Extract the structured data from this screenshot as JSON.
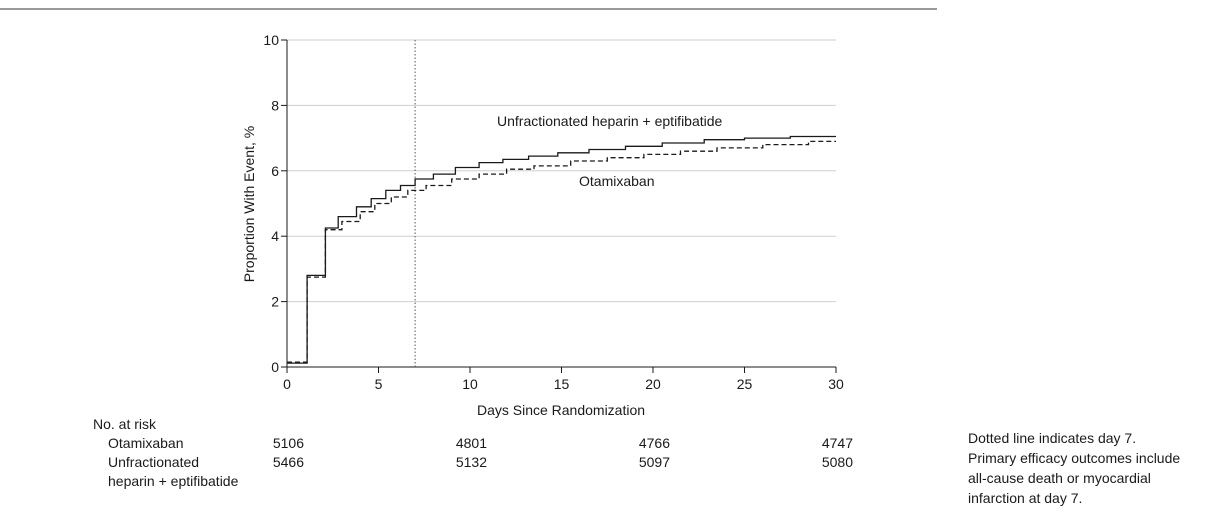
{
  "chart_data": {
    "type": "line",
    "xlabel": "Days Since Randomization",
    "ylabel": "Proportion With Event, %",
    "xlim": [
      0,
      30
    ],
    "ylim": [
      0,
      10
    ],
    "x_ticks": [
      "0",
      "5",
      "10",
      "15",
      "20",
      "25",
      "30"
    ],
    "y_ticks": [
      "0",
      "2",
      "4",
      "6",
      "8",
      "10"
    ],
    "grid": "horizontal",
    "reference_line": {
      "x": 7,
      "style": "dotted"
    },
    "series": [
      {
        "name": "Unfractionated heparin + eptifibatide",
        "line_style": "solid",
        "color": "#1a1a1a",
        "x": [
          0,
          1.1,
          1.1,
          2.1,
          2.1,
          2.8,
          2.8,
          3.8,
          3.8,
          4.6,
          4.6,
          5.4,
          5.4,
          6.2,
          6.2,
          7.0,
          7.0,
          8.0,
          8.0,
          9.2,
          9.2,
          10.5,
          10.5,
          11.8,
          11.8,
          13.2,
          13.2,
          14.8,
          14.8,
          16.5,
          16.5,
          18.5,
          18.5,
          20.5,
          20.5,
          22.8,
          22.8,
          25.0,
          25.0,
          27.5,
          27.5,
          30.0
        ],
        "y": [
          0.12,
          0.12,
          2.8,
          2.8,
          4.25,
          4.25,
          4.6,
          4.6,
          4.9,
          4.9,
          5.15,
          5.15,
          5.4,
          5.4,
          5.55,
          5.55,
          5.75,
          5.75,
          5.9,
          5.9,
          6.1,
          6.1,
          6.25,
          6.25,
          6.35,
          6.35,
          6.45,
          6.45,
          6.55,
          6.55,
          6.65,
          6.65,
          6.75,
          6.75,
          6.85,
          6.85,
          6.95,
          6.95,
          7.0,
          7.0,
          7.05,
          7.05
        ]
      },
      {
        "name": "Otamixaban",
        "line_style": "dashed",
        "color": "#1a1a1a",
        "x": [
          0,
          1.1,
          1.1,
          2.1,
          2.1,
          3.0,
          3.0,
          4.0,
          4.0,
          4.8,
          4.8,
          5.7,
          5.7,
          6.6,
          6.6,
          7.6,
          7.6,
          9.0,
          9.0,
          10.5,
          10.5,
          12.0,
          12.0,
          13.5,
          13.5,
          15.5,
          15.5,
          17.5,
          17.5,
          19.5,
          19.5,
          21.5,
          21.5,
          23.5,
          23.5,
          26.0,
          26.0,
          28.5,
          28.5,
          30.0
        ],
        "y": [
          0.15,
          0.15,
          2.75,
          2.75,
          4.2,
          4.2,
          4.45,
          4.45,
          4.75,
          4.75,
          5.0,
          5.0,
          5.2,
          5.2,
          5.4,
          5.4,
          5.55,
          5.55,
          5.75,
          5.75,
          5.9,
          5.9,
          6.05,
          6.05,
          6.15,
          6.15,
          6.3,
          6.3,
          6.4,
          6.4,
          6.5,
          6.5,
          6.6,
          6.6,
          6.7,
          6.7,
          6.8,
          6.8,
          6.9,
          6.9
        ]
      }
    ],
    "annotations": [
      "Unfractionated heparin + eptifibatide",
      "Otamixaban"
    ]
  },
  "risk_table": {
    "title": "No. at risk",
    "rows": [
      {
        "label_lines": [
          "Otamixaban"
        ],
        "values": [
          "5106",
          "4801",
          "4766",
          "4747"
        ]
      },
      {
        "label_lines": [
          "Unfractionated",
          "heparin + eptifibatide"
        ],
        "values": [
          "5466",
          "5132",
          "5097",
          "5080"
        ]
      }
    ],
    "days": [
      0,
      10,
      20,
      30
    ]
  },
  "caption": {
    "lines": [
      "Dotted line indicates day 7.",
      "Primary efficacy outcomes include",
      "all-cause death or myocardial",
      "infarction at day 7."
    ]
  }
}
